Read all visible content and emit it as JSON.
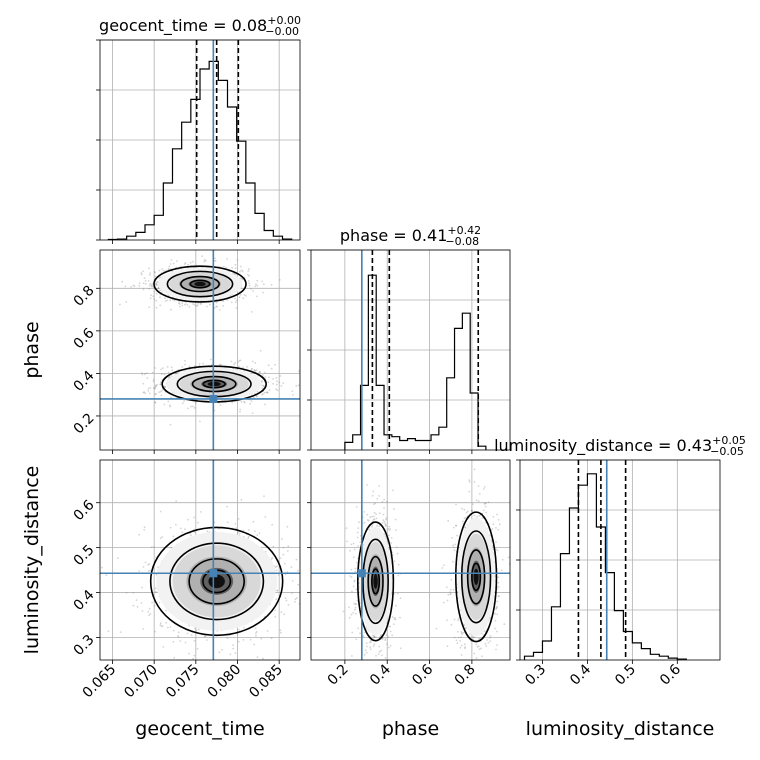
{
  "chart_data": {
    "type": "corner",
    "parameters": [
      {
        "name": "geocent_time",
        "xlabel": "geocent_time",
        "ticks": [
          "0.065",
          "0.070",
          "0.075",
          "0.080",
          "0.085"
        ],
        "range": [
          0.0635,
          0.0875
        ],
        "truth": 0.0771,
        "title_main": "geocent_time = 0.08",
        "title_plus": "+0.00",
        "title_minus": "−0.00",
        "quantiles": [
          0.0751,
          0.0775,
          0.0801
        ],
        "hist_x0": 0.0645,
        "hist_bin": 0.0011,
        "hist": [
          0.003,
          0.005,
          0.02,
          0.04,
          0.08,
          0.13,
          0.3,
          0.48,
          0.62,
          0.74,
          0.9,
          0.94,
          0.84,
          0.7,
          0.52,
          0.3,
          0.14,
          0.05,
          0.02,
          0.005
        ]
      },
      {
        "name": "phase",
        "xlabel": "phase",
        "ylabel": "phase",
        "ticks": [
          "0.2",
          "0.4",
          "0.6",
          "0.8"
        ],
        "range": [
          0.04,
          0.98
        ],
        "truth": 0.28,
        "title_main": "phase = 0.41",
        "title_plus": "+0.42",
        "title_minus": "−0.08",
        "quantiles": [
          0.33,
          0.41,
          0.83
        ],
        "hist_x0": 0.2,
        "hist_bin": 0.037,
        "hist": [
          0.04,
          0.08,
          0.34,
          0.92,
          0.34,
          0.08,
          0.07,
          0.05,
          0.06,
          0.05,
          0.05,
          0.08,
          0.12,
          0.38,
          0.64,
          0.72,
          0.3,
          0.02
        ]
      },
      {
        "name": "luminosity_distance",
        "xlabel": "luminosity_distance",
        "ylabel": "luminosity_distance",
        "ticks": [
          "0.3",
          "0.4",
          "0.5",
          "0.6"
        ],
        "range": [
          0.25,
          0.695
        ],
        "truth": 0.443,
        "title_main": "luminosity_distance = 0.43",
        "title_plus": "+0.05",
        "title_minus": "−0.05",
        "quantiles": [
          0.38,
          0.43,
          0.485
        ],
        "hist_x0": 0.26,
        "hist_bin": 0.02,
        "hist": [
          0.02,
          0.04,
          0.1,
          0.28,
          0.56,
          0.8,
          0.92,
          0.98,
          0.7,
          0.46,
          0.26,
          0.15,
          0.09,
          0.06,
          0.03,
          0.02,
          0.01,
          0.005
        ]
      }
    ],
    "grid": true,
    "truth_color": "#4682b4",
    "contour_color": "#000000",
    "sample_color": "#888888",
    "modes": {
      "phase_vs_geocent_time": [
        {
          "cx": 0.0772,
          "cy": 0.35,
          "sx": 0.0026,
          "sy": 0.035
        },
        {
          "cx": 0.0755,
          "cy": 0.82,
          "sx": 0.0023,
          "sy": 0.035
        }
      ],
      "luminosity_distance_vs_geocent_time": [
        {
          "cx": 0.0775,
          "cy": 0.425,
          "sx": 0.0033,
          "sy": 0.05
        }
      ],
      "luminosity_distance_vs_phase": [
        {
          "cx": 0.345,
          "cy": 0.425,
          "sx": 0.035,
          "sy": 0.055
        },
        {
          "cx": 0.82,
          "cy": 0.435,
          "sx": 0.04,
          "sy": 0.06
        }
      ]
    }
  }
}
